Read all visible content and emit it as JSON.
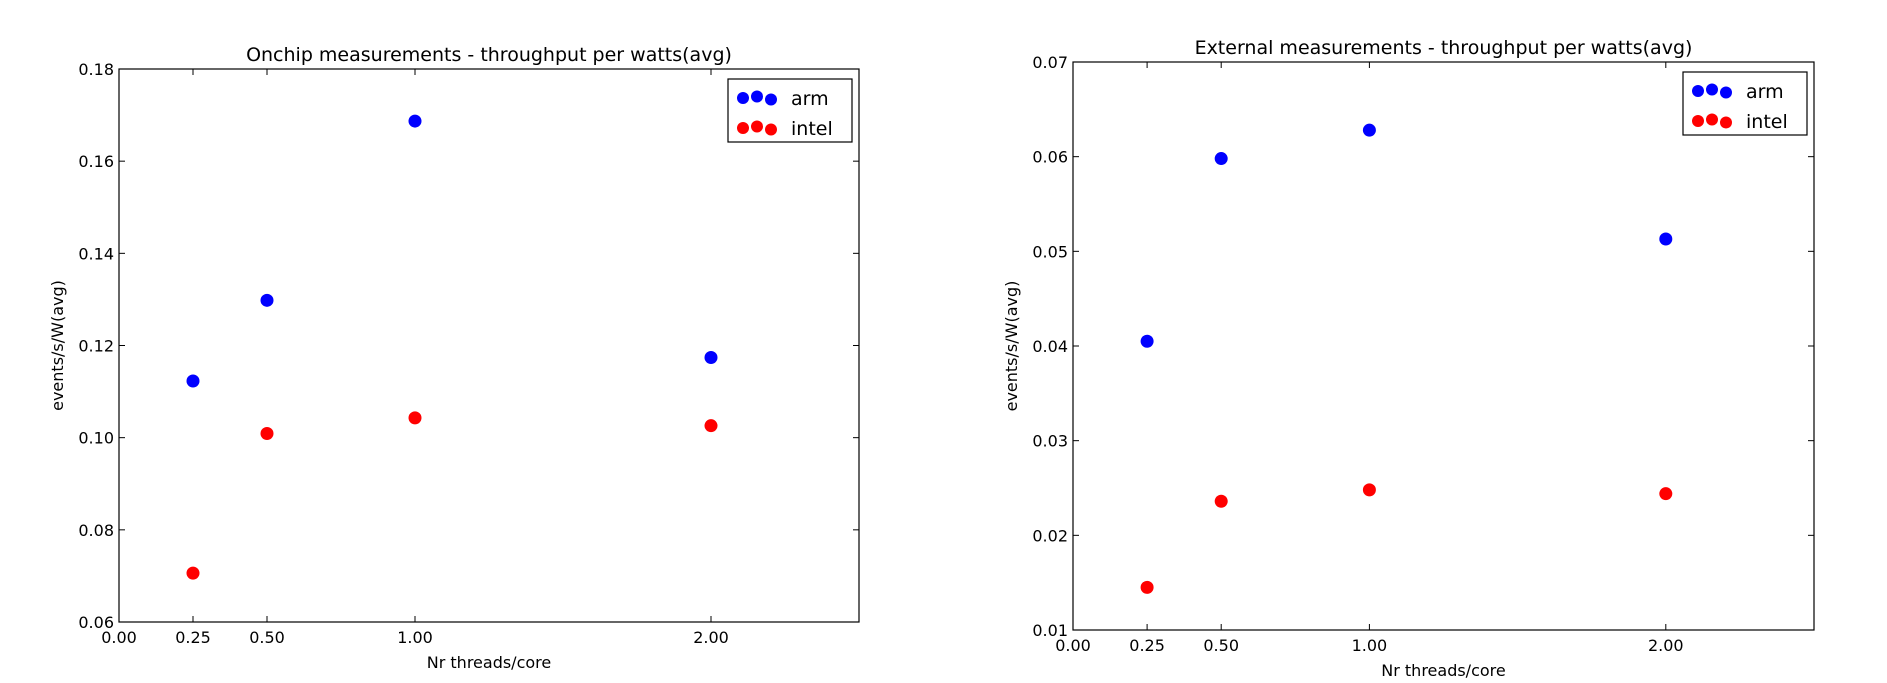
{
  "colors": {
    "arm": "#0000ff",
    "intel": "#ff0000",
    "axes": "#000000",
    "background": "#ffffff"
  },
  "chart_data": [
    {
      "type": "scatter",
      "title": "Onchip measurements - throughput per watts(avg)",
      "xlabel": "Nr threads/core",
      "ylabel": "events/s/W(avg)",
      "xlim": [
        0,
        2.5
      ],
      "ylim": [
        0.06,
        0.18
      ],
      "xticks": [
        0,
        0.25,
        0.5,
        1,
        2
      ],
      "xtick_labels": [
        "0.00",
        "0.25",
        "0.50",
        "1.00",
        "2.00"
      ],
      "yticks": [
        0.06,
        0.08,
        0.1,
        0.12,
        0.14,
        0.16,
        0.18
      ],
      "ytick_labels": [
        "0.06",
        "0.08",
        "0.10",
        "0.12",
        "0.14",
        "0.16",
        "0.18"
      ],
      "grid": false,
      "legend_position": "top-right",
      "series": [
        {
          "name": "arm",
          "color": "#0000ff",
          "x": [
            0.25,
            0.5,
            1,
            2
          ],
          "y": [
            0.1123,
            0.1298,
            0.1687,
            0.1174
          ]
        },
        {
          "name": "intel",
          "color": "#ff0000",
          "x": [
            0.25,
            0.5,
            1,
            2
          ],
          "y": [
            0.0706,
            0.1009,
            0.1043,
            0.1026
          ]
        }
      ]
    },
    {
      "type": "scatter",
      "title": "External measurements - throughput per watts(avg)",
      "xlabel": "Nr threads/core",
      "ylabel": "events/s/W(avg)",
      "xlim": [
        0,
        2.5
      ],
      "ylim": [
        0.01,
        0.07
      ],
      "xticks": [
        0,
        0.25,
        0.5,
        1,
        2
      ],
      "xtick_labels": [
        "0.00",
        "0.25",
        "0.50",
        "1.00",
        "2.00"
      ],
      "yticks": [
        0.01,
        0.02,
        0.03,
        0.04,
        0.05,
        0.06,
        0.07
      ],
      "ytick_labels": [
        "0.01",
        "0.02",
        "0.03",
        "0.04",
        "0.05",
        "0.06",
        "0.07"
      ],
      "grid": false,
      "legend_position": "top-right",
      "series": [
        {
          "name": "arm",
          "color": "#0000ff",
          "x": [
            0.25,
            0.5,
            1,
            2
          ],
          "y": [
            0.0405,
            0.0598,
            0.0628,
            0.0513
          ]
        },
        {
          "name": "intel",
          "color": "#ff0000",
          "x": [
            0.25,
            0.5,
            1,
            2
          ],
          "y": [
            0.0145,
            0.0236,
            0.0248,
            0.0244
          ]
        }
      ]
    }
  ]
}
